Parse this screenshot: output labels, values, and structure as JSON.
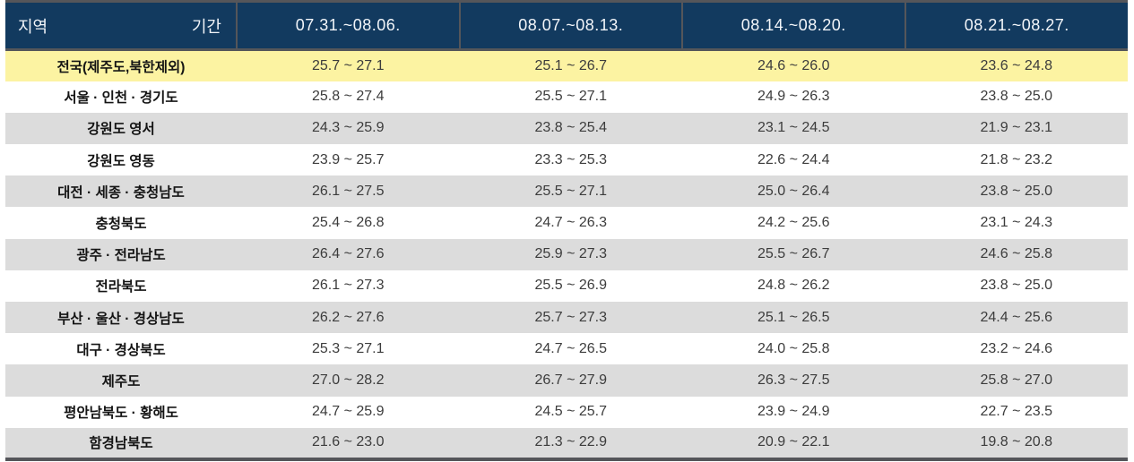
{
  "chart_data": {
    "type": "table",
    "corner": {
      "left_label": "지역",
      "right_label": "기간"
    },
    "period_columns": [
      "07.31.~08.06.",
      "08.07.~08.13.",
      "08.14.~08.20.",
      "08.21.~08.27."
    ],
    "unit": "°C range (low ~ high)",
    "rows": [
      {
        "region": "전국(제주도,북한제외)",
        "highlight": true,
        "ranges": [
          "25.7 ~ 27.1",
          "25.1 ~ 26.7",
          "24.6 ~ 26.0",
          "23.6 ~ 24.8"
        ]
      },
      {
        "region": "서울 · 인천 · 경기도",
        "highlight": false,
        "ranges": [
          "25.8 ~ 27.4",
          "25.5 ~ 27.1",
          "24.9 ~ 26.3",
          "23.8 ~ 25.0"
        ]
      },
      {
        "region": "강원도 영서",
        "highlight": false,
        "ranges": [
          "24.3 ~ 25.9",
          "23.8 ~ 25.4",
          "23.1 ~ 24.5",
          "21.9 ~ 23.1"
        ]
      },
      {
        "region": "강원도 영동",
        "highlight": false,
        "ranges": [
          "23.9 ~ 25.7",
          "23.3 ~ 25.3",
          "22.6 ~ 24.4",
          "21.8 ~ 23.2"
        ]
      },
      {
        "region": "대전 · 세종 · 충청남도",
        "highlight": false,
        "ranges": [
          "26.1 ~ 27.5",
          "25.5 ~ 27.1",
          "25.0 ~ 26.4",
          "23.8 ~ 25.0"
        ]
      },
      {
        "region": "충청북도",
        "highlight": false,
        "ranges": [
          "25.4 ~ 26.8",
          "24.7 ~ 26.3",
          "24.2 ~ 25.6",
          "23.1 ~ 24.3"
        ]
      },
      {
        "region": "광주 · 전라남도",
        "highlight": false,
        "ranges": [
          "26.4 ~ 27.6",
          "25.9 ~ 27.3",
          "25.5 ~ 26.7",
          "24.6 ~ 25.8"
        ]
      },
      {
        "region": "전라북도",
        "highlight": false,
        "ranges": [
          "26.1 ~ 27.3",
          "25.5 ~ 26.9",
          "24.8 ~ 26.2",
          "23.8 ~ 25.0"
        ]
      },
      {
        "region": "부산 · 울산 · 경상남도",
        "highlight": false,
        "ranges": [
          "26.2 ~ 27.6",
          "25.7 ~ 27.3",
          "25.1 ~ 26.5",
          "24.4 ~ 25.6"
        ]
      },
      {
        "region": "대구 · 경상북도",
        "highlight": false,
        "ranges": [
          "25.3 ~ 27.1",
          "24.7 ~ 26.5",
          "24.0 ~ 25.8",
          "23.2 ~ 24.6"
        ]
      },
      {
        "region": "제주도",
        "highlight": false,
        "ranges": [
          "27.0 ~ 28.2",
          "26.7 ~ 27.9",
          "26.3 ~ 27.5",
          "25.8 ~ 27.0"
        ]
      },
      {
        "region": "평안남북도 · 황해도",
        "highlight": false,
        "ranges": [
          "24.7 ~ 25.9",
          "24.5 ~ 25.7",
          "23.9 ~ 24.9",
          "22.7 ~ 23.5"
        ]
      },
      {
        "region": "함경남북도",
        "highlight": false,
        "ranges": [
          "21.6 ~ 23.0",
          "21.3 ~ 22.9",
          "20.9 ~ 22.1",
          "19.8 ~ 20.8"
        ]
      }
    ]
  },
  "colors": {
    "header_bg": "#123a5f",
    "header_text": "#f2f5f9",
    "highlight_row_bg": "#fcf3a2",
    "stripe_row_bg": "#dcdcdc",
    "border": "#55565a",
    "diagonal_line": "#c8cdd4"
  }
}
